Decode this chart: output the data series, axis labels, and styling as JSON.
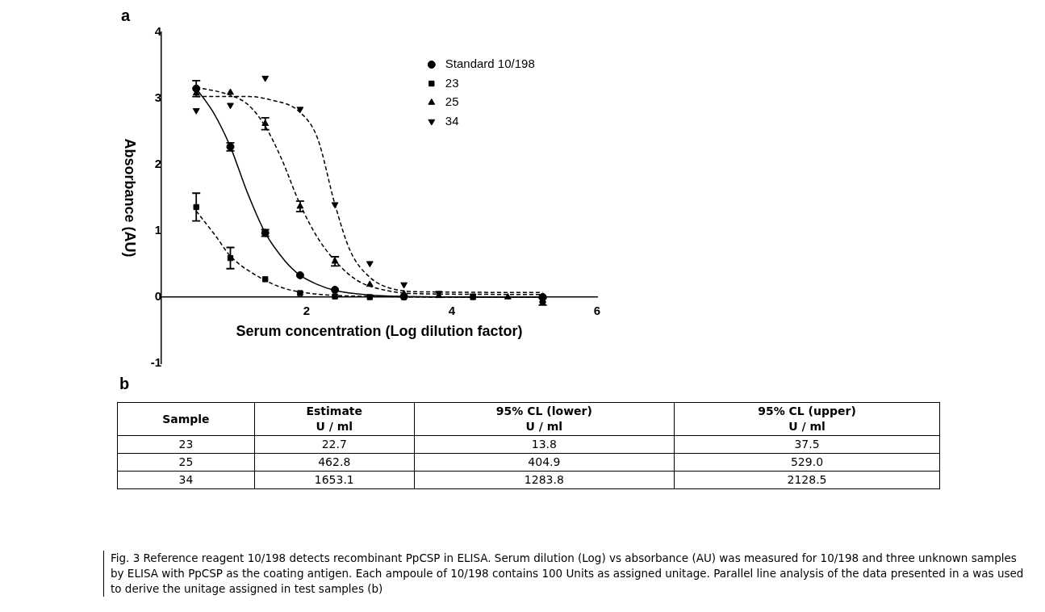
{
  "chart_data": [
    {
      "type": "scatter",
      "title": "a",
      "xlabel": "Serum concentration (Log dilution factor)",
      "ylabel": "Absorbance (AU)",
      "xlim": [
        0,
        6
      ],
      "xticks": [
        {
          "value": 0,
          "label": null
        },
        2,
        4,
        6
      ],
      "ylim": [
        -1,
        4
      ],
      "yticks": [
        -1,
        0,
        1,
        2,
        3,
        4
      ],
      "grid": false,
      "legend": "top right",
      "series": [
        {
          "name": "Standard 10/198",
          "color": "#000000",
          "marker": "circle",
          "x": [
            0.48,
            0.95,
            1.43,
            1.91,
            2.39,
            2.87,
            3.34,
            3.82,
            4.29,
            4.77,
            5.25
          ],
          "values": [
            3.15,
            2.27,
            0.97,
            0.33,
            0.11,
            null,
            0.01,
            null,
            null,
            null,
            0
          ],
          "errors": [
            0.12,
            0.06,
            0.05,
            null,
            null,
            null,
            null,
            null,
            null,
            null,
            null
          ]
        },
        {
          "name": "23",
          "color": "#000000",
          "marker": "square",
          "x": [
            0.48,
            0.95,
            1.43,
            1.91,
            2.39,
            2.87,
            3.34,
            3.82,
            4.29,
            4.77,
            5.25
          ],
          "values": [
            1.36,
            0.59,
            0.27,
            0.06,
            0.01,
            0,
            0,
            null,
            0,
            null,
            -0.07
          ],
          "errors": [
            0.21,
            0.16,
            null,
            null,
            null,
            null,
            null,
            null,
            null,
            null,
            0.05
          ]
        },
        {
          "name": "25",
          "color": "#000000",
          "marker": "triangle",
          "x": [
            0.48,
            0.95,
            1.43,
            1.91,
            2.39,
            2.87,
            3.34,
            3.82,
            4.29,
            4.77,
            5.25
          ],
          "values": [
            3.08,
            3.09,
            2.62,
            1.37,
            0.54,
            0.19,
            0.05,
            0.02,
            null,
            0,
            -0.05
          ],
          "errors": [
            null,
            null,
            0.09,
            0.08,
            0.07,
            null,
            null,
            null,
            null,
            null,
            null
          ]
        },
        {
          "name": "34",
          "color": "#000000",
          "marker": "triangle-down",
          "x": [
            0.48,
            0.95,
            1.43,
            1.91,
            2.39,
            2.87,
            3.34,
            3.82,
            4.29,
            4.77,
            5.25
          ],
          "values": [
            2.82,
            2.9,
            3.31,
            2.84,
            1.4,
            0.51,
            0.19,
            0.06,
            0.02,
            null,
            0
          ]
        },
        {
          "type": "line",
          "color": "#000000",
          "line_style": "solid",
          "marker": "none",
          "x": [
            0.48,
            0.71,
            0.95,
            1.18,
            1.43,
            1.7,
            1.91,
            2.15,
            2.39,
            2.87,
            3.34,
            4.29,
            5.25
          ],
          "values": [
            3.15,
            2.8,
            2.27,
            1.59,
            0.97,
            0.55,
            0.33,
            0.19,
            0.1,
            0.03,
            0.01,
            0,
            0
          ]
        },
        {
          "type": "line",
          "color": "#000000",
          "line_style": "dashed",
          "marker": "none",
          "x": [
            0.48,
            0.75,
            0.95,
            1.35,
            1.7,
            2.1,
            2.5,
            3.0,
            4.0,
            5.25
          ],
          "values": [
            1.3,
            0.92,
            0.62,
            0.3,
            0.13,
            0.05,
            0.02,
            0.01,
            0,
            0
          ]
        },
        {
          "type": "line",
          "color": "#000000",
          "line_style": "dashed",
          "marker": "none",
          "x": [
            0.48,
            0.95,
            1.2,
            1.43,
            1.65,
            1.91,
            2.15,
            2.39,
            2.7,
            3.1,
            3.6,
            5.25
          ],
          "values": [
            3.17,
            3.05,
            2.9,
            2.58,
            2.1,
            1.4,
            0.9,
            0.55,
            0.25,
            0.1,
            0.05,
            0.04
          ]
        },
        {
          "type": "line",
          "color": "#000000",
          "line_style": "dashed",
          "marker": "none",
          "x": [
            0.48,
            1.2,
            1.5,
            1.9,
            2.15,
            2.39,
            2.6,
            2.87,
            3.2,
            3.6,
            5.25
          ],
          "values": [
            3.03,
            3.03,
            2.98,
            2.8,
            2.4,
            1.4,
            0.7,
            0.3,
            0.12,
            0.08,
            0.07
          ]
        }
      ]
    },
    {
      "type": "other",
      "title": "b",
      "xlabel": "Sample",
      "categories": [
        "23",
        "25",
        "34"
      ],
      "data_labels": true,
      "series": [
        {
          "name": "Estimate\nU / ml",
          "values": [
            22.7,
            462.8,
            1653.1
          ]
        },
        {
          "name": "95% CL (lower)\nU / ml",
          "values": [
            13.8,
            404.9,
            1283.8
          ]
        },
        {
          "name": "95% CL (upper)\nU / ml",
          "values": [
            37.5,
            529.0,
            2128.5
          ],
          "value_labels": [
            "37.5",
            "529.0",
            "2128.5"
          ]
        }
      ],
      "annotations": [
        "Fig. 3  Reference reagent 10/198 detects recombinant PpCSP in ELISA. Serum dilution (Log) vs absorbance (AU) was measured for 10/198 and three unknown samples by ELISA with PpCSP as the coating antigen. Each ampoule of 10/198 contains 100 Units as assigned unitage. Parallel line analysis of the data presented in a was used to derive the unitage assigned in test samples (b)"
      ]
    }
  ]
}
